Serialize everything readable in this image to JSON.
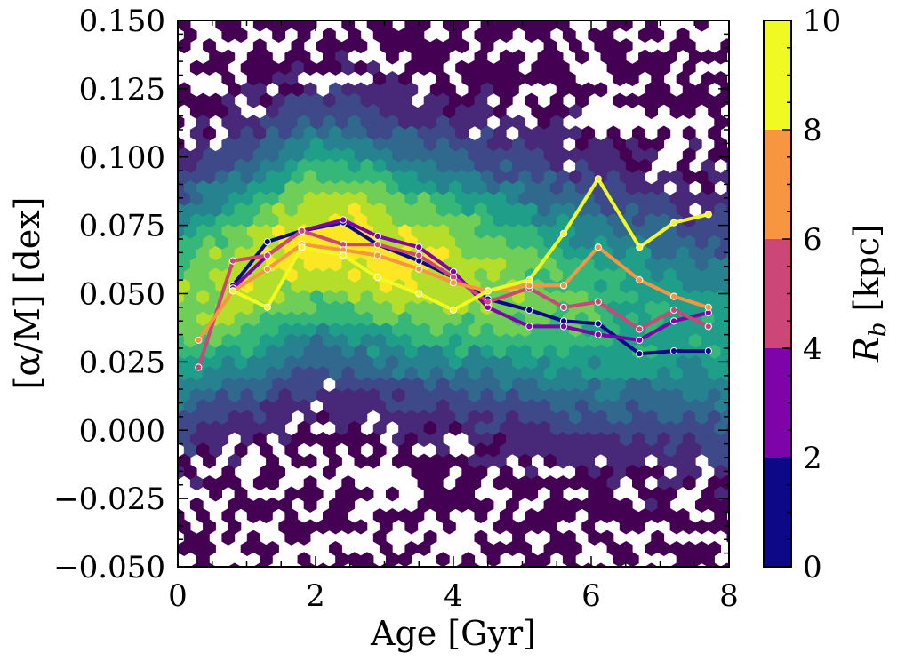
{
  "chart_data": {
    "type": "scatter",
    "subtype": "hexbin density with binned-median lines",
    "xlabel": "Age [Gyr]",
    "ylabel": "[α/M] [dex]",
    "xlim": [
      0,
      8
    ],
    "ylim": [
      -0.05,
      0.15
    ],
    "xticks": [
      0,
      2,
      4,
      6,
      8
    ],
    "xtick_labels": [
      "0",
      "2",
      "4",
      "6",
      "8"
    ],
    "yticks": [
      -0.05,
      -0.025,
      0.0,
      0.025,
      0.05,
      0.075,
      0.1,
      0.125,
      0.15
    ],
    "ytick_labels": [
      "−0.050",
      "−0.025",
      "0.000",
      "0.025",
      "0.050",
      "0.075",
      "0.100",
      "0.125",
      "0.150"
    ],
    "colorbar": {
      "label_main": "R",
      "label_sub": "b",
      "label_unit": " [kpc]",
      "range": [
        0,
        10
      ],
      "ticks": [
        0,
        2,
        4,
        6,
        8,
        10
      ],
      "tick_labels": [
        "0",
        "2",
        "4",
        "6",
        "8",
        "10"
      ],
      "bins": [
        {
          "min": 0,
          "max": 2,
          "color": "#0d0887"
        },
        {
          "min": 2,
          "max": 4,
          "color": "#7e03a8"
        },
        {
          "min": 4,
          "max": 6,
          "color": "#cc4778"
        },
        {
          "min": 6,
          "max": 8,
          "color": "#f89540"
        },
        {
          "min": 8,
          "max": 10,
          "color": "#f0f921"
        }
      ]
    },
    "density_colormap": [
      "#440154",
      "#482878",
      "#3e4989",
      "#31688e",
      "#26828e",
      "#1f9e89",
      "#35b779",
      "#6ece58",
      "#b5de2b",
      "#fde725"
    ],
    "series": [
      {
        "name": "R_b 0-2 kpc",
        "color": "#0d0887",
        "x": [
          0.8,
          1.3,
          1.8,
          2.4,
          2.9,
          3.5,
          4.0,
          4.5,
          5.1,
          5.6,
          6.1,
          6.7,
          7.2,
          7.7
        ],
        "y": [
          0.053,
          0.069,
          0.073,
          0.076,
          0.068,
          0.062,
          0.056,
          0.048,
          0.044,
          0.04,
          0.039,
          0.028,
          0.029,
          0.029
        ]
      },
      {
        "name": "R_b 2-4 kpc",
        "color": "#7e03a8",
        "x": [
          0.8,
          1.3,
          1.8,
          2.4,
          2.9,
          3.5,
          4.0,
          4.5,
          5.1,
          5.6,
          6.1,
          6.7,
          7.2,
          7.7
        ],
        "y": [
          0.052,
          0.064,
          0.073,
          0.077,
          0.071,
          0.067,
          0.058,
          0.045,
          0.038,
          0.038,
          0.035,
          0.033,
          0.04,
          0.043
        ]
      },
      {
        "name": "R_b 4-6 kpc",
        "color": "#cc4778",
        "x": [
          0.3,
          0.8,
          1.3,
          1.8,
          2.4,
          2.9,
          3.5,
          4.0,
          4.5,
          5.1,
          5.6,
          6.1,
          6.7,
          7.2,
          7.7
        ],
        "y": [
          0.023,
          0.062,
          0.064,
          0.073,
          0.068,
          0.068,
          0.064,
          0.056,
          0.047,
          0.052,
          0.045,
          0.047,
          0.037,
          0.044,
          0.038
        ]
      },
      {
        "name": "R_b 6-8 kpc",
        "color": "#f89540",
        "x": [
          0.3,
          0.8,
          1.3,
          1.8,
          2.4,
          2.9,
          3.5,
          4.0,
          4.5,
          5.1,
          5.6,
          6.1,
          6.7,
          7.2,
          7.7
        ],
        "y": [
          0.033,
          0.051,
          0.059,
          0.068,
          0.066,
          0.064,
          0.059,
          0.054,
          0.051,
          0.053,
          0.053,
          0.067,
          0.055,
          0.049,
          0.045
        ]
      },
      {
        "name": "R_b 8-10 kpc",
        "color": "#f0f921",
        "x": [
          0.8,
          1.3,
          1.8,
          2.4,
          2.9,
          3.5,
          4.0,
          4.5,
          5.1,
          5.6,
          6.1,
          6.7,
          7.2,
          7.7
        ],
        "y": [
          0.051,
          0.045,
          0.067,
          0.064,
          0.056,
          0.05,
          0.044,
          0.051,
          0.055,
          0.072,
          0.092,
          0.067,
          0.076,
          0.079
        ]
      }
    ]
  }
}
